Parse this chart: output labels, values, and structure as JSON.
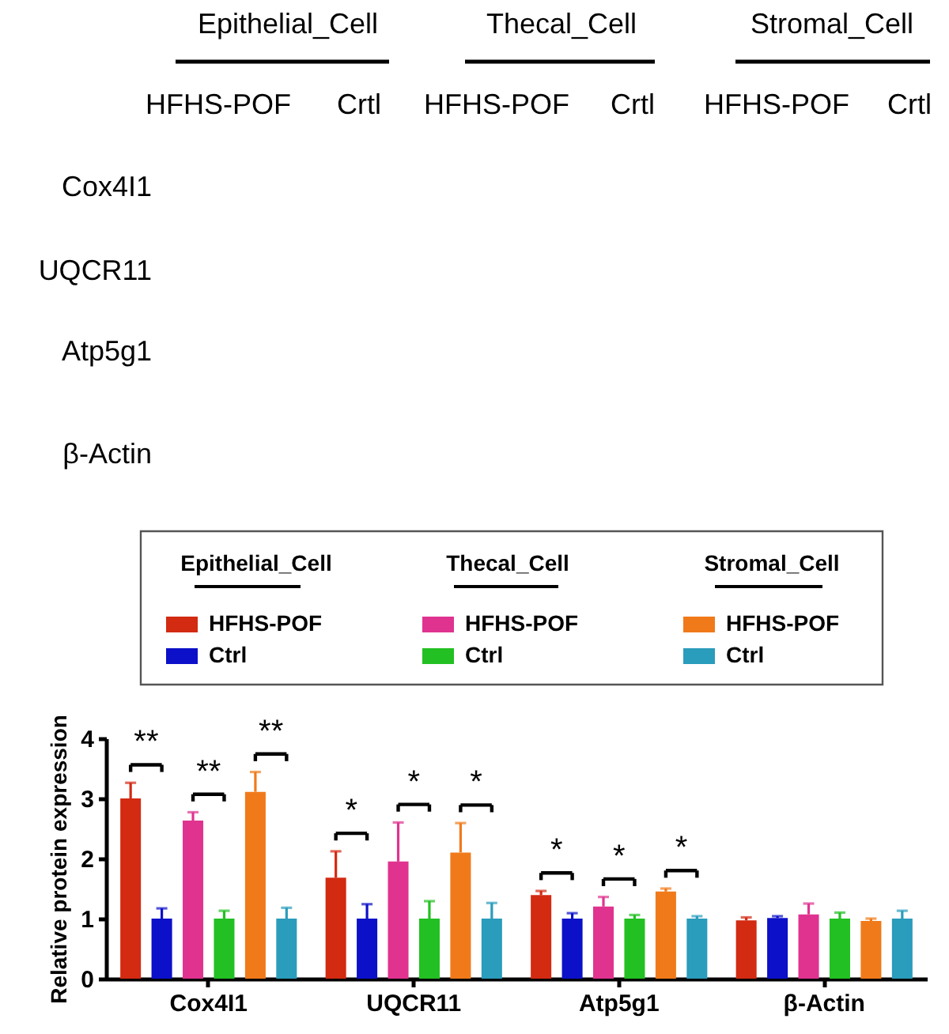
{
  "chart_data": [
    {
      "type": "other",
      "annotations": [
        "Epithelial_Cell",
        "Thecal_Cell",
        "Stromal_Cell",
        "HFHS-POF",
        "Crtl",
        "HFHS-POF",
        "Crtl",
        "HFHS-POF",
        "Crtl",
        "Cox4I1",
        "UQCR11",
        "Atp5g1",
        "β-Actin"
      ]
    },
    {
      "type": "bar",
      "ylabel": "Relative protein expression",
      "categories": [
        "Cox4I1",
        "UQCR11",
        "Atp5g1",
        "β-Actin"
      ],
      "ylim": [
        0,
        4
      ],
      "yticks": [
        0,
        1,
        2,
        3,
        4
      ],
      "legend": "top",
      "series": [
        {
          "name": "HFHS-POF",
          "color": "#d32a12",
          "values": [
            3.0,
            1.68,
            1.39,
            0.97
          ],
          "errors": [
            [
              3.0,
              3.26
            ],
            [
              1.68,
              2.12
            ],
            [
              1.39,
              1.46
            ],
            [
              0.97,
              1.02
            ]
          ]
        },
        {
          "name": "Ctrl",
          "color": "#0c10c8",
          "values": [
            1.0,
            1.0,
            1.0,
            1.01
          ],
          "errors": [
            [
              1.0,
              1.17
            ],
            [
              1.0,
              1.24
            ],
            [
              1.0,
              1.09
            ],
            [
              1.01,
              1.04
            ]
          ]
        },
        {
          "name": "HFHS-POF",
          "color": "#e03390",
          "values": [
            2.63,
            1.95,
            1.2,
            1.07
          ],
          "errors": [
            [
              2.63,
              2.77
            ],
            [
              1.95,
              2.6
            ],
            [
              1.2,
              1.36
            ],
            [
              1.07,
              1.25
            ]
          ]
        },
        {
          "name": "Ctrl",
          "color": "#22c022",
          "values": [
            1.0,
            1.0,
            1.0,
            1.0
          ],
          "errors": [
            [
              1.0,
              1.13
            ],
            [
              1.0,
              1.29
            ],
            [
              1.0,
              1.06
            ],
            [
              1.0,
              1.1
            ]
          ]
        },
        {
          "name": "HFHS-POF",
          "color": "#f07a1a",
          "values": [
            3.11,
            2.1,
            1.45,
            0.96
          ],
          "errors": [
            [
              3.11,
              3.44
            ],
            [
              2.1,
              2.59
            ],
            [
              1.45,
              1.5
            ],
            [
              0.96,
              1.0
            ]
          ]
        },
        {
          "name": "Ctrl",
          "color": "#2a9cbc",
          "values": [
            1.0,
            1.0,
            1.0,
            1.0
          ],
          "errors": [
            [
              1.0,
              1.18
            ],
            [
              1.0,
              1.26
            ],
            [
              1.0,
              1.04
            ],
            [
              1.0,
              1.13
            ]
          ]
        }
      ],
      "annotations": [
        "Epithelial_Cell",
        "Thecal_Cell",
        "Stromal_Cell",
        "**",
        "**",
        "**",
        "*",
        "*",
        "*",
        "*",
        "*",
        "*"
      ]
    }
  ]
}
